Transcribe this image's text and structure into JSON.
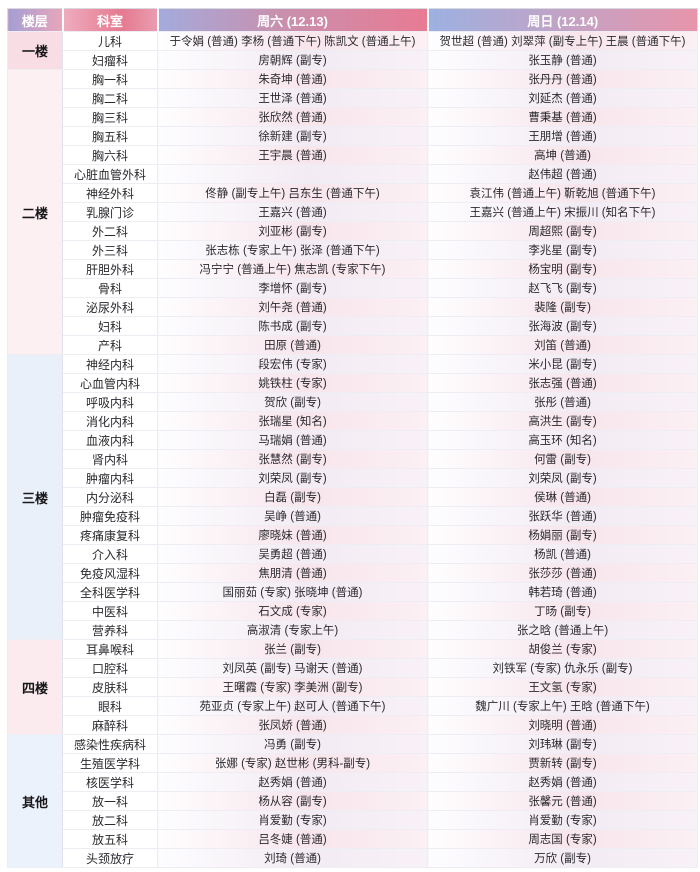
{
  "table": {
    "columns": [
      "楼层",
      "科室",
      "周六 (12.13)",
      "周日 (12.14)"
    ],
    "groups": [
      {
        "floor": "一楼",
        "rows": [
          {
            "dept": "儿科",
            "sat": "于令娟 (普通) 李杨 (普通下午) 陈凯文 (普通上午)",
            "sun": "贺世超 (普通) 刘翠萍 (副专上午) 王晨 (普通下午)"
          },
          {
            "dept": "妇瘤科",
            "sat": "房朝辉 (副专)",
            "sun": "张玉静 (普通)"
          }
        ]
      },
      {
        "floor": "二楼",
        "rows": [
          {
            "dept": "胸一科",
            "sat": "朱奇坤 (普通)",
            "sun": "张丹丹 (普通)"
          },
          {
            "dept": "胸二科",
            "sat": "王世泽 (普通)",
            "sun": "刘延杰 (普通)"
          },
          {
            "dept": "胸三科",
            "sat": "张欣然 (普通)",
            "sun": "曹秉基 (普通)"
          },
          {
            "dept": "胸五科",
            "sat": "徐新建 (副专)",
            "sun": "王朋增 (普通)"
          },
          {
            "dept": "胸六科",
            "sat": "王宇晨 (普通)",
            "sun": "高坤 (普通)"
          },
          {
            "dept": "心脏血管外科",
            "sat": "",
            "sun": "赵伟超 (普通)"
          },
          {
            "dept": "神经外科",
            "sat": "佟静 (副专上午) 吕东生 (普通下午)",
            "sun": "袁江伟 (普通上午) 靳乾旭 (普通下午)"
          },
          {
            "dept": "乳腺门诊",
            "sat": "王嘉兴 (普通)",
            "sun": "王嘉兴 (普通上午) 宋振川 (知名下午)"
          },
          {
            "dept": "外二科",
            "sat": "刘亚彬 (副专)",
            "sun": "周超熙 (副专)"
          },
          {
            "dept": "外三科",
            "sat": "张志栋 (专家上午) 张泽 (普通下午)",
            "sun": "李兆星 (副专)"
          },
          {
            "dept": "肝胆外科",
            "sat": "冯宁宁 (普通上午) 焦志凯 (专家下午)",
            "sun": "杨宝明 (副专)"
          },
          {
            "dept": "骨科",
            "sat": "李增怀 (副专)",
            "sun": "赵飞飞 (副专)"
          },
          {
            "dept": "泌尿外科",
            "sat": "刘午尧 (普通)",
            "sun": "裴隆 (副专)"
          },
          {
            "dept": "妇科",
            "sat": "陈书成 (副专)",
            "sun": "张海波 (副专)"
          },
          {
            "dept": "产科",
            "sat": "田原 (普通)",
            "sun": "刘笛 (普通)"
          }
        ]
      },
      {
        "floor": "三楼",
        "rows": [
          {
            "dept": "神经内科",
            "sat": "段宏伟 (专家)",
            "sun": "米小昆 (副专)"
          },
          {
            "dept": "心血管内科",
            "sat": "姚铁柱 (专家)",
            "sun": "张志强 (普通)"
          },
          {
            "dept": "呼吸内科",
            "sat": "贺欣 (副专)",
            "sun": "张彤 (普通)"
          },
          {
            "dept": "消化内科",
            "sat": "张瑞星 (知名)",
            "sun": "高洪生 (副专)"
          },
          {
            "dept": "血液内科",
            "sat": "马瑞娟 (普通)",
            "sun": "高玉环 (知名)"
          },
          {
            "dept": "肾内科",
            "sat": "张慧然 (副专)",
            "sun": "何雷 (副专)"
          },
          {
            "dept": "肿瘤内科",
            "sat": "刘荣凤 (副专)",
            "sun": "刘荣凤 (副专)"
          },
          {
            "dept": "内分泌科",
            "sat": "白磊 (副专)",
            "sun": "侯琳 (普通)"
          },
          {
            "dept": "肿瘤免疫科",
            "sat": "吴峥 (普通)",
            "sun": "张跃华 (普通)"
          },
          {
            "dept": "疼痛康复科",
            "sat": "廖晓妹 (普通)",
            "sun": "杨娟丽 (副专)"
          },
          {
            "dept": "介入科",
            "sat": "吴勇超 (普通)",
            "sun": "杨凯 (普通)"
          },
          {
            "dept": "免疫风湿科",
            "sat": "焦朋清 (普通)",
            "sun": "张莎莎 (普通)"
          },
          {
            "dept": "全科医学科",
            "sat": "国丽茹 (专家) 张晓坤 (普通)",
            "sun": "韩若琦 (普通)"
          },
          {
            "dept": "中医科",
            "sat": "石文成 (专家)",
            "sun": "丁旸 (副专)"
          },
          {
            "dept": "营养科",
            "sat": "高淑清 (专家上午)",
            "sun": "张之晗 (普通上午)"
          }
        ]
      },
      {
        "floor": "四楼",
        "rows": [
          {
            "dept": "耳鼻喉科",
            "sat": "张兰 (副专)",
            "sun": "胡俊兰 (专家)"
          },
          {
            "dept": "口腔科",
            "sat": "刘凤英 (副专) 马谢天 (普通)",
            "sun": "刘铁军 (专家) 仇永乐 (副专)"
          },
          {
            "dept": "皮肤科",
            "sat": "王曙霞 (专家) 李美洲 (副专)",
            "sun": "王文氢 (专家)"
          },
          {
            "dept": "眼科",
            "sat": "苑亚贞 (专家上午) 赵可人 (普通下午)",
            "sun": "魏广川 (专家上午) 王晗 (普通下午)"
          },
          {
            "dept": "麻醉科",
            "sat": "张凤娇 (普通)",
            "sun": "刘晓明 (普通)"
          }
        ]
      },
      {
        "floor": "其他",
        "rows": [
          {
            "dept": "感染性疾病科",
            "sat": "冯勇 (副专)",
            "sun": "刘玮琳 (副专)"
          },
          {
            "dept": "生殖医学科",
            "sat": "张娜 (专家) 赵世彬 (男科-副专)",
            "sun": "贾新转 (副专)"
          },
          {
            "dept": "核医学科",
            "sat": "赵秀娟 (普通)",
            "sun": "赵秀娟 (普通)"
          },
          {
            "dept": "放一科",
            "sat": "杨从容 (副专)",
            "sun": "张馨元 (普通)"
          },
          {
            "dept": "放二科",
            "sat": "肖爱勤 (专家)",
            "sun": "肖爱勤 (专家)"
          },
          {
            "dept": "放五科",
            "sat": "吕冬婕 (普通)",
            "sun": "周志国 (专家)"
          },
          {
            "dept": "头颈放疗",
            "sat": "刘琦 (普通)",
            "sun": "万欣 (副专)"
          }
        ]
      }
    ]
  },
  "colors": {
    "header_lavender": "#a49ed4",
    "header_pink": "#e5798f",
    "header_blue": "#9db1e1",
    "floor_1": "#f8dde4",
    "floor_2": "#fcf0f3",
    "floor_3": "#e9f0fa",
    "floor_4": "#fbebee",
    "floor_5": "#ebf2fb",
    "row_pink": "#f8e5ec",
    "row_lavender": "#f3ebf3"
  }
}
